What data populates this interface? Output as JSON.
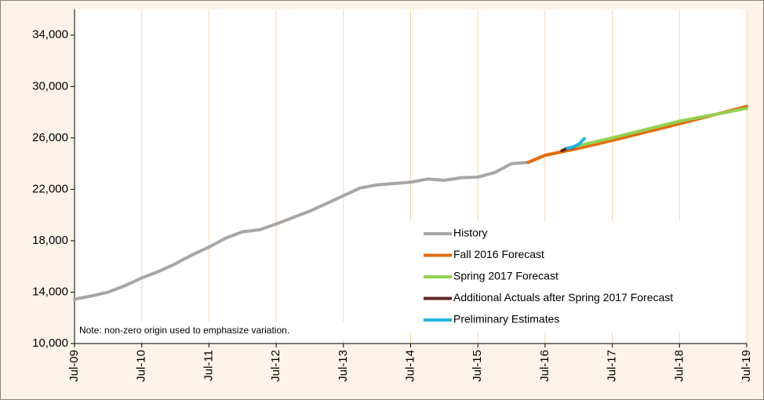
{
  "chart_data": {
    "type": "line",
    "note": "Note: non-zero origin used to emphasize variation.",
    "xlim": [
      "Jul-09",
      "Jul-19"
    ],
    "xticks": [
      "Jul-09",
      "Jul-10",
      "Jul-11",
      "Jul-12",
      "Jul-13",
      "Jul-14",
      "Jul-15",
      "Jul-16",
      "Jul-17",
      "Jul-18",
      "Jul-19"
    ],
    "ylim": [
      10000,
      36000
    ],
    "yticks": [
      {
        "value": 10000,
        "label": "10,000"
      },
      {
        "value": 14000,
        "label": "14,000"
      },
      {
        "value": 18000,
        "label": "18,000"
      },
      {
        "value": 22000,
        "label": "22,000"
      },
      {
        "value": 26000,
        "label": "26,000"
      },
      {
        "value": 30000,
        "label": "30,000"
      },
      {
        "value": 34000,
        "label": "34,000"
      }
    ],
    "grid": "x",
    "series": [
      {
        "name": "History",
        "color": "#a6a6a6",
        "x": [
          "Jul-09",
          "Oct-09",
          "Jan-10",
          "Apr-10",
          "Jul-10",
          "Oct-10",
          "Jan-11",
          "Apr-11",
          "Jul-11",
          "Oct-11",
          "Jan-12",
          "Apr-12",
          "Jul-12",
          "Oct-12",
          "Jan-13",
          "Apr-13",
          "Jul-13",
          "Oct-13",
          "Jan-14",
          "Apr-14",
          "Jul-14",
          "Oct-14",
          "Jan-15",
          "Apr-15",
          "Jul-15",
          "Oct-15",
          "Jan-16",
          "Apr-16"
        ],
        "values": [
          13450,
          13700,
          14000,
          14500,
          15100,
          15600,
          16200,
          16900,
          17500,
          18200,
          18700,
          18850,
          19300,
          19800,
          20300,
          20900,
          21500,
          22100,
          22350,
          22450,
          22550,
          22800,
          22700,
          22900,
          22950,
          23300,
          24000,
          24100
        ]
      },
      {
        "name": "Fall 2016 Forecast",
        "color": "#e36c0a",
        "x": [
          "Apr-16",
          "Jul-16",
          "Jan-17",
          "Jul-17",
          "Jul-18",
          "Jul-19"
        ],
        "values": [
          24100,
          24650,
          25200,
          25800,
          27100,
          28450
        ]
      },
      {
        "name": "Spring 2017 Forecast",
        "color": "#92d050",
        "x": [
          "Jan-17",
          "Apr-17",
          "Jul-17",
          "Jul-18",
          "Jul-19"
        ],
        "values": [
          25400,
          25700,
          26000,
          27300,
          28300
        ]
      },
      {
        "name": "Additional Actuals after Spring 2017 Forecast",
        "color": "#632523",
        "x": [
          "Oct-16",
          "Nov-16",
          "Dec-16"
        ],
        "values": [
          25000,
          25200,
          25250
        ]
      },
      {
        "name": "Preliminary Estimates",
        "color": "#1fb4e0",
        "x": [
          "Nov-16",
          "Dec-16",
          "Jan-17",
          "Feb-17"
        ],
        "values": [
          25200,
          25300,
          25500,
          25950
        ]
      }
    ]
  }
}
